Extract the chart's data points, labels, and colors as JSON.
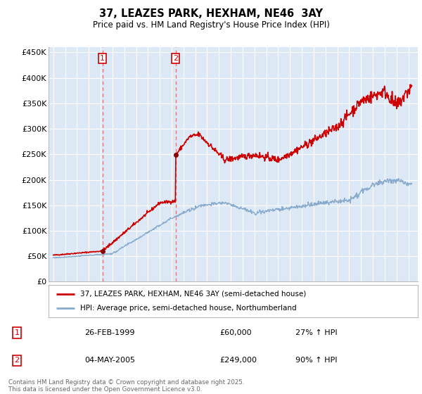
{
  "title": "37, LEAZES PARK, HEXHAM, NE46  3AY",
  "subtitle": "Price paid vs. HM Land Registry's House Price Index (HPI)",
  "ylabel_ticks": [
    "£0",
    "£50K",
    "£100K",
    "£150K",
    "£200K",
    "£250K",
    "£300K",
    "£350K",
    "£400K",
    "£450K"
  ],
  "ytick_vals": [
    0,
    50000,
    100000,
    150000,
    200000,
    250000,
    300000,
    350000,
    400000,
    450000
  ],
  "ylim": [
    0,
    460000
  ],
  "sale1": {
    "date_num": 1999.15,
    "price": 60000,
    "label": "1",
    "date_str": "26-FEB-1999",
    "hpi_pct": "27% ↑ HPI"
  },
  "sale2": {
    "date_num": 2005.34,
    "price": 249000,
    "label": "2",
    "date_str": "04-MAY-2005",
    "hpi_pct": "90% ↑ HPI"
  },
  "legend_line1": "37, LEAZES PARK, HEXHAM, NE46 3AY (semi-detached house)",
  "legend_line2": "HPI: Average price, semi-detached house, Northumberland",
  "footer": "Contains HM Land Registry data © Crown copyright and database right 2025.\nThis data is licensed under the Open Government Licence v3.0.",
  "line_color_red": "#cc0000",
  "line_color_blue": "#88aacc",
  "background_color": "#dce8f5",
  "grid_color": "#ffffff",
  "vline_color": "#dd7777",
  "marker_color": "#880000",
  "sale_table": [
    {
      "num": "1",
      "date": "26-FEB-1999",
      "price": "£60,000",
      "hpi": "27% ↑ HPI"
    },
    {
      "num": "2",
      "date": "04-MAY-2005",
      "price": "£249,000",
      "hpi": "90% ↑ HPI"
    }
  ]
}
